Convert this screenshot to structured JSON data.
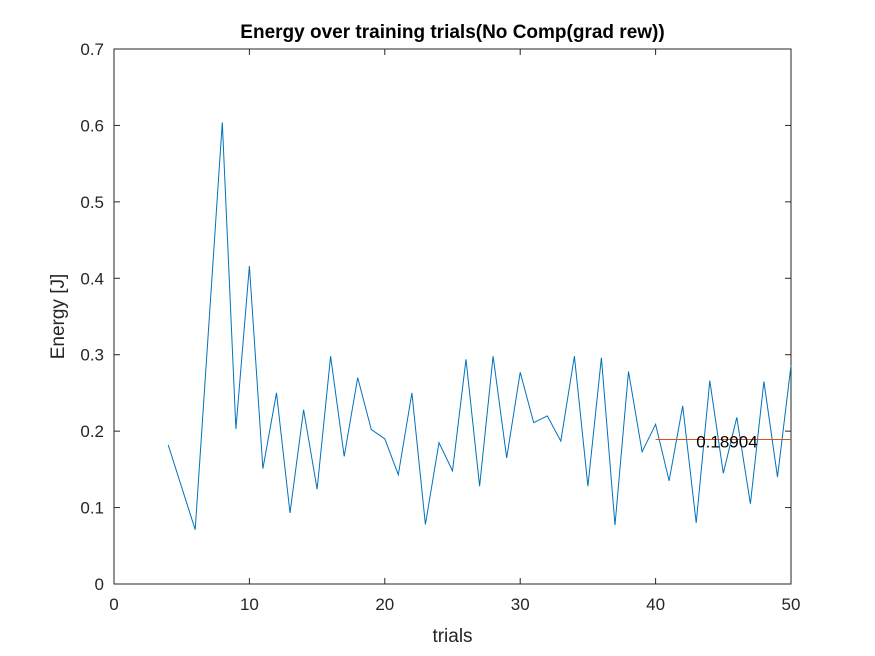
{
  "chart_data": {
    "type": "line",
    "title": "Energy over training trials(No Comp(grad rew))",
    "xlabel": "trials",
    "ylabel": "Energy [J]",
    "xlim": [
      0,
      50
    ],
    "ylim": [
      0,
      0.7
    ],
    "xticks": [
      "0",
      "10",
      "20",
      "30",
      "40",
      "50"
    ],
    "yticks": [
      "0",
      "0.1",
      "0.2",
      "0.3",
      "0.4",
      "0.5",
      "0.6",
      "0.7"
    ],
    "grid": false,
    "series": [
      {
        "color": "#0072BD",
        "x": [
          4,
          6,
          8,
          9,
          10,
          11,
          12,
          13,
          14,
          15,
          16,
          17,
          18,
          19,
          20,
          21,
          22,
          23,
          24,
          25,
          26,
          27,
          28,
          29,
          30,
          31,
          32,
          33,
          34,
          35,
          36,
          37,
          38,
          39,
          40,
          41,
          42,
          43,
          44,
          45,
          46,
          47,
          48,
          49,
          50
        ],
        "y": [
          0.182,
          0.071,
          0.604,
          0.203,
          0.416,
          0.151,
          0.25,
          0.093,
          0.228,
          0.124,
          0.298,
          0.167,
          0.27,
          0.202,
          0.19,
          0.143,
          0.25,
          0.078,
          0.185,
          0.148,
          0.294,
          0.128,
          0.298,
          0.165,
          0.277,
          0.211,
          0.22,
          0.187,
          0.298,
          0.128,
          0.296,
          0.077,
          0.278,
          0.173,
          0.209,
          0.135,
          0.233,
          0.08,
          0.266,
          0.145,
          0.218,
          0.105,
          0.265,
          0.14,
          0.286
        ]
      },
      {
        "color": "#D95319",
        "x": [
          40,
          50
        ],
        "y": [
          0.18904,
          0.18904
        ]
      }
    ],
    "annotation": {
      "text": "0.18904",
      "x": 43,
      "y": 0.18904
    }
  }
}
